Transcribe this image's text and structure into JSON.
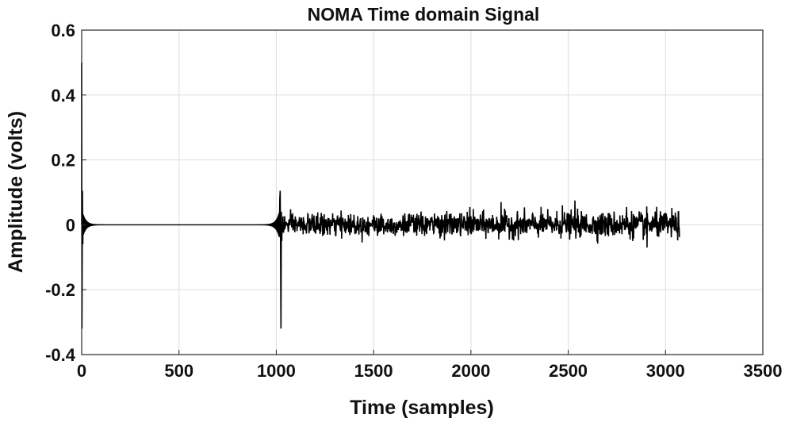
{
  "chart_data": {
    "type": "line",
    "title": "NOMA Time domain Signal",
    "xlabel": "Time (samples)",
    "ylabel": "Amplitude (volts)",
    "xlim": [
      0,
      3500
    ],
    "ylim": [
      -0.4,
      0.6
    ],
    "x_ticks": [
      0,
      500,
      1000,
      1500,
      2000,
      2500,
      3000,
      3500
    ],
    "y_ticks": [
      0.6,
      0.4,
      0.2,
      0,
      -0.2,
      -0.4
    ],
    "x_tick_labels": [
      "0",
      "500",
      "1000",
      "1500",
      "2000",
      "2500",
      "3000",
      "3500"
    ],
    "y_tick_labels": [
      "0.6",
      "0.4",
      "0.2",
      "0",
      "-0.2",
      "-0.4"
    ],
    "grid": true,
    "series": [
      {
        "color": "#000000",
        "x_start": 0,
        "x_end": 3072,
        "segments": [
          {
            "kind": "impulse_decay",
            "x_from": 0,
            "x_to": 1024,
            "peak_max": 0.5,
            "peak_min": -0.32
          },
          {
            "kind": "impulse_decay",
            "x_from": 1024,
            "x_to": 1040,
            "peak_max": 0.105,
            "peak_min": -0.32
          },
          {
            "kind": "noise",
            "x_from": 1024,
            "x_to": 3072,
            "typical_max": 0.04,
            "typical_min": -0.04,
            "extreme_max": 0.075,
            "extreme_min": -0.07
          }
        ],
        "key_points": [
          {
            "x": 0,
            "y": 0.5
          },
          {
            "x": 2,
            "y": -0.32
          },
          {
            "x": 5,
            "y": 0.105
          },
          {
            "x": 1020,
            "y": 0.105
          },
          {
            "x": 1024,
            "y": -0.32
          },
          {
            "x": 2155,
            "y": 0.07
          },
          {
            "x": 2535,
            "y": 0.075
          },
          {
            "x": 2905,
            "y": -0.068
          }
        ]
      }
    ]
  }
}
